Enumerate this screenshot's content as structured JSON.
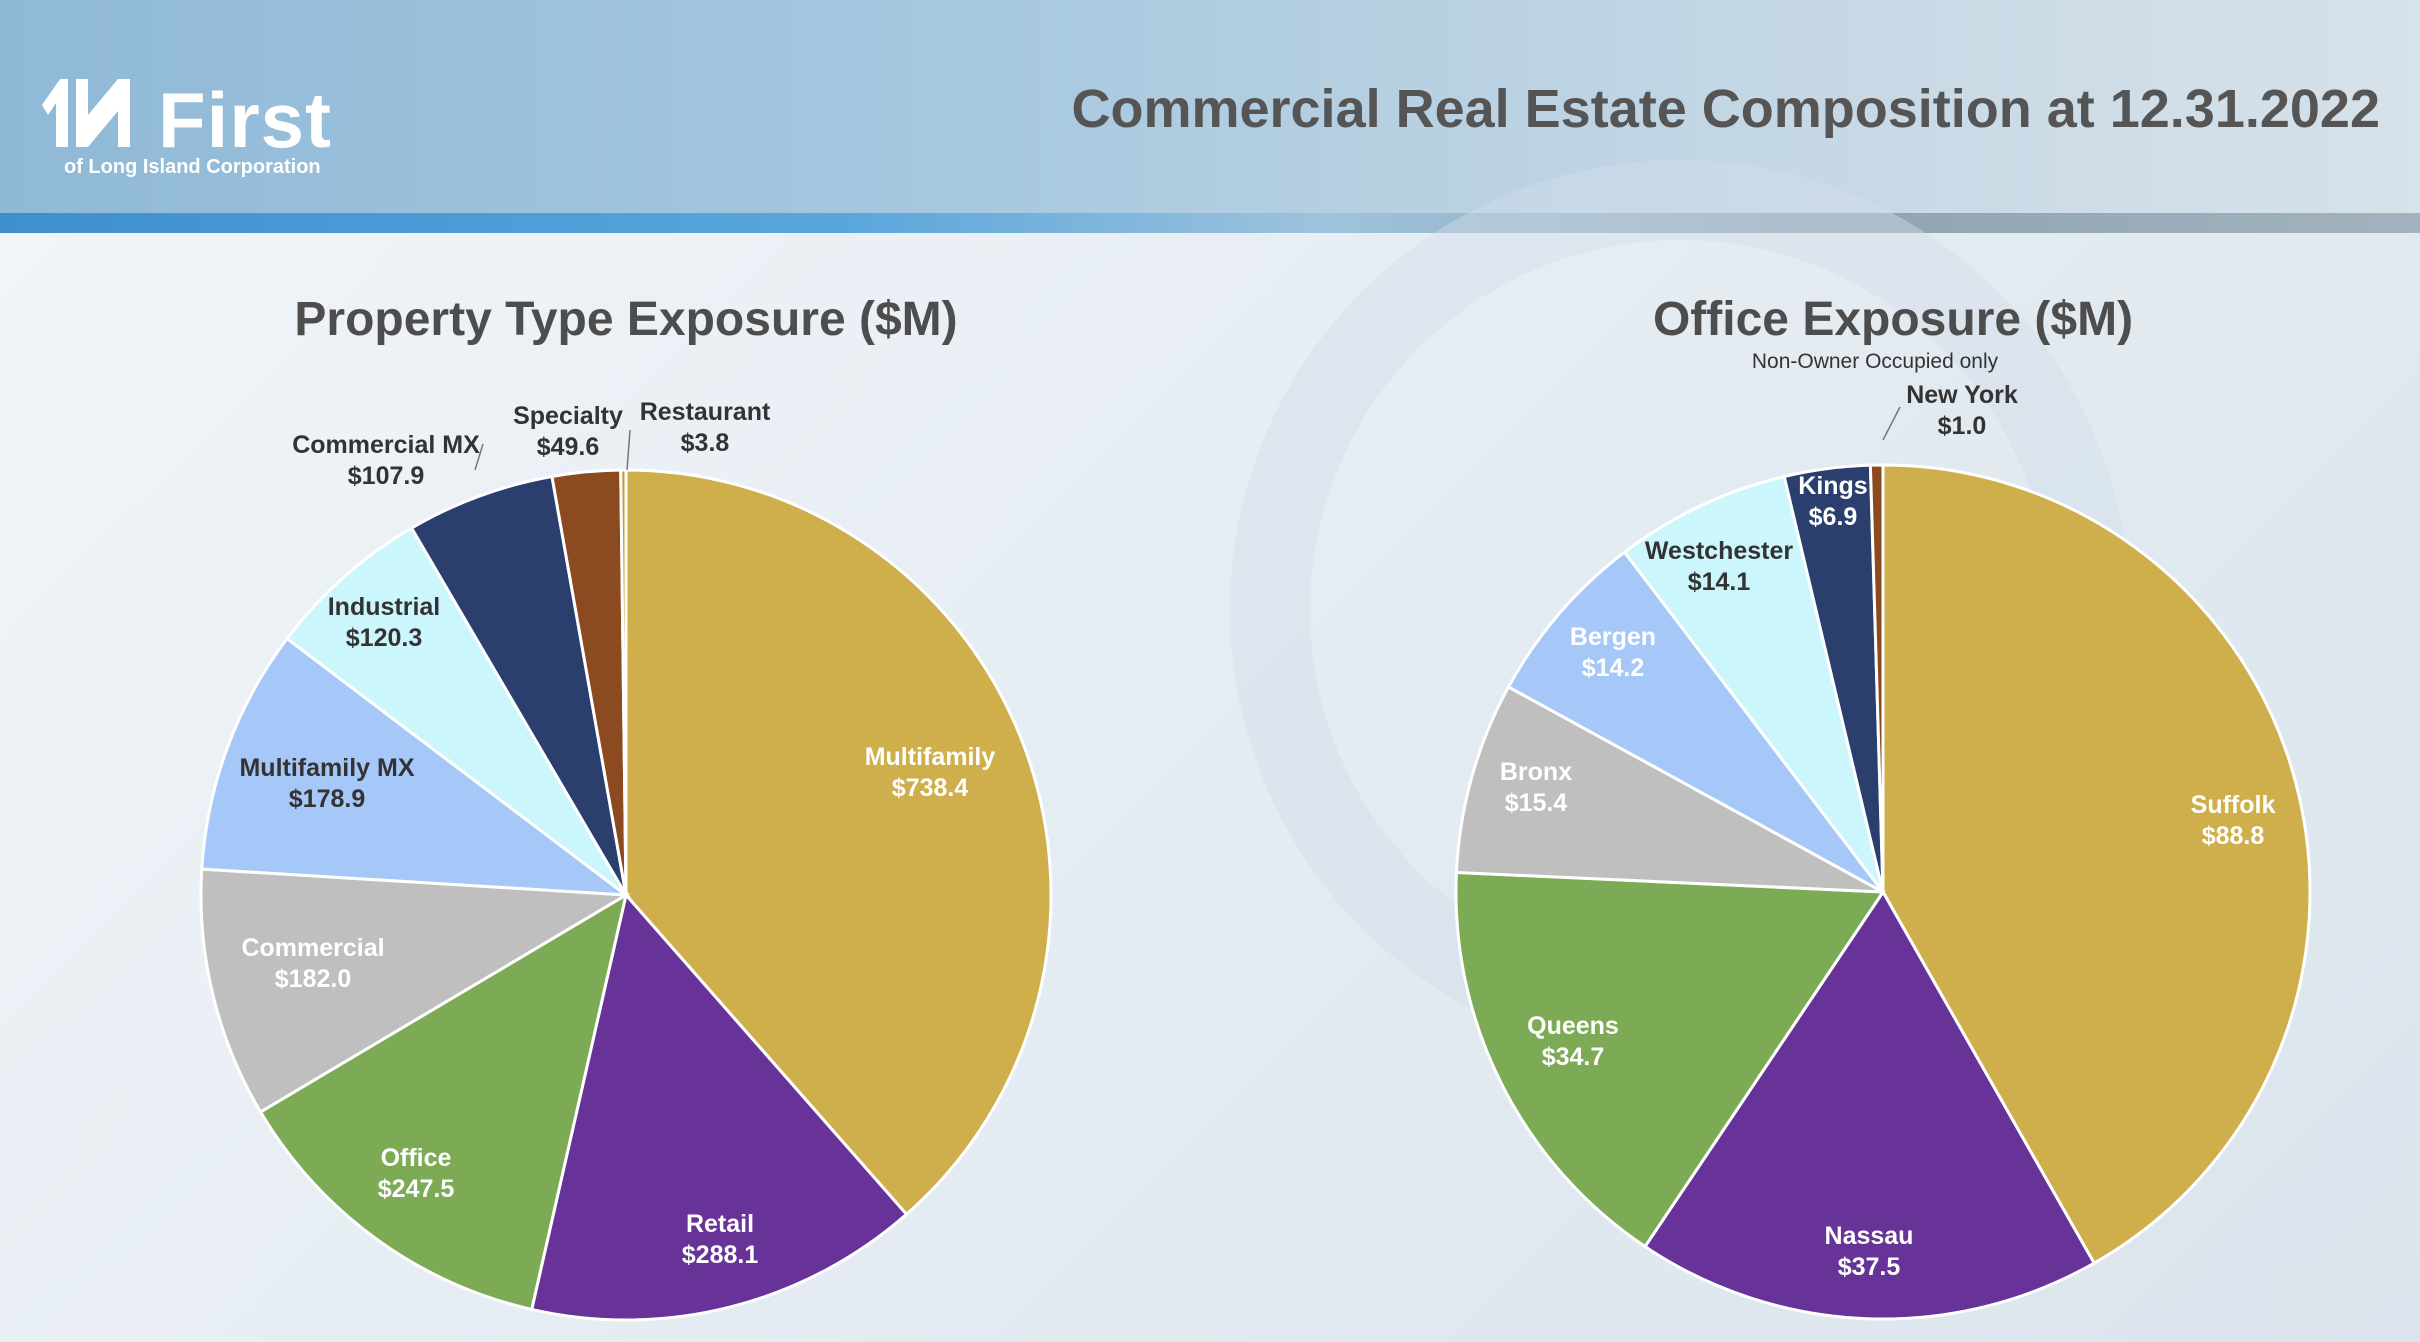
{
  "header": {
    "title": "Commercial Real Estate Composition at 12.31.2022",
    "logo_text": "First",
    "logo_subtext": "of Long Island Corporation"
  },
  "chart_data": [
    {
      "type": "pie",
      "title": "Property Type Exposure ($M)",
      "subtitle": "",
      "slices": [
        {
          "label": "Multifamily",
          "value_label": "$738.4",
          "value": 738.4,
          "color": "#ceaf4c"
        },
        {
          "label": "Retail",
          "value_label": "$288.1",
          "value": 288.1,
          "color": "#673398"
        },
        {
          "label": "Office",
          "value_label": "$247.5",
          "value": 247.5,
          "color": "#7dab55"
        },
        {
          "label": "Commercial",
          "value_label": "$182.0",
          "value": 182.0,
          "color": "#bfbfbf"
        },
        {
          "label": "Multifamily MX",
          "value_label": "$178.9",
          "value": 178.9,
          "color": "#a6c8f9"
        },
        {
          "label": "Industrial",
          "value_label": "$120.3",
          "value": 120.3,
          "color": "#cbf6fc"
        },
        {
          "label": "Commercial MX",
          "value_label": "$107.9",
          "value": 107.9,
          "color": "#2b3f6e"
        },
        {
          "label": "Specialty",
          "value_label": "$49.6",
          "value": 49.6,
          "color": "#8c4a21"
        },
        {
          "label": "Restaurant",
          "value_label": "$3.8",
          "value": 3.8,
          "color": "#c89a3d"
        }
      ]
    },
    {
      "type": "pie",
      "title": "Office Exposure ($M)",
      "subtitle": "Non-Owner Occupied only",
      "slices": [
        {
          "label": "Suffolk",
          "value_label": "$88.8",
          "value": 88.8,
          "color": "#ceaf4c"
        },
        {
          "label": "Nassau",
          "value_label": "$37.5",
          "value": 37.5,
          "color": "#673398"
        },
        {
          "label": "Queens",
          "value_label": "$34.7",
          "value": 34.7,
          "color": "#7dab55"
        },
        {
          "label": "Bronx",
          "value_label": "$15.4",
          "value": 15.4,
          "color": "#bfbfbf"
        },
        {
          "label": "Bergen",
          "value_label": "$14.2",
          "value": 14.2,
          "color": "#a6c8f9"
        },
        {
          "label": "Westchester",
          "value_label": "$14.1",
          "value": 14.1,
          "color": "#cbf6fc"
        },
        {
          "label": "Kings",
          "value_label": "$6.9",
          "value": 6.9,
          "color": "#2b3f6e"
        },
        {
          "label": "New York",
          "value_label": "$1.0",
          "value": 1.0,
          "color": "#8c4a21"
        }
      ]
    }
  ]
}
